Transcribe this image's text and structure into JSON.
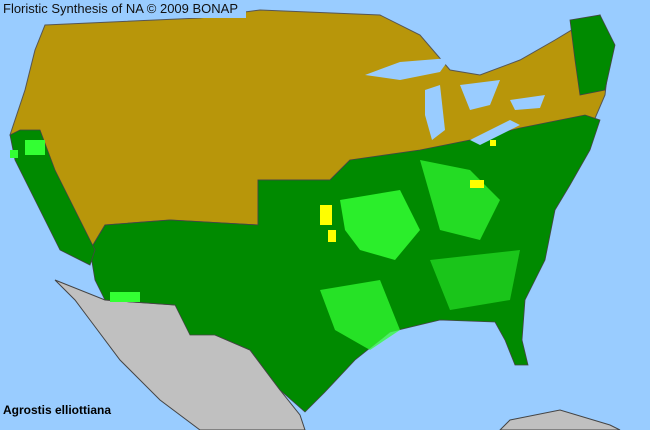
{
  "title": "Floristic Synthesis of NA © 2009 BONAP",
  "species": "Agrostis elliottiana",
  "colors": {
    "ocean": "#99ccff",
    "not_present": "#b8960a",
    "present_state": "#008a00",
    "present_county": "#33ff33",
    "rare_or_noxious": "#ffff00",
    "outside_region": "#c0c0c0",
    "borders": "#555555"
  }
}
